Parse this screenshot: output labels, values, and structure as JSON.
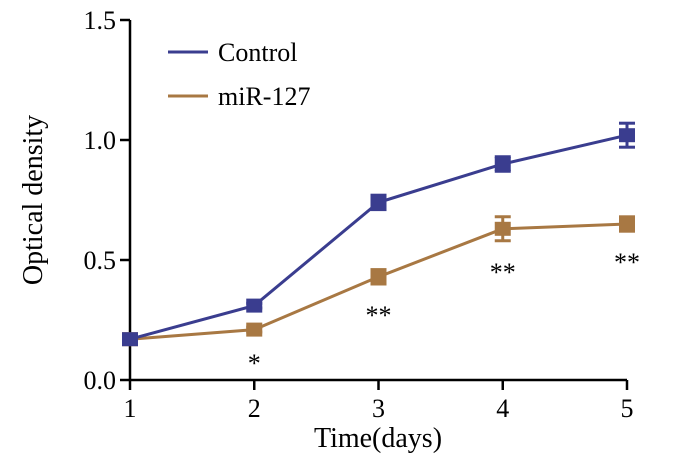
{
  "chart_data": {
    "type": "line",
    "title": "",
    "xlabel": "Time(days)",
    "ylabel": "Optical density",
    "x": [
      1,
      2,
      3,
      4,
      5
    ],
    "x_tick_labels": [
      "1",
      "2",
      "3",
      "4",
      "5"
    ],
    "xlim": [
      1,
      5
    ],
    "ylim": [
      0,
      1.5
    ],
    "y_ticks": [
      0.0,
      0.5,
      1.0,
      1.5
    ],
    "y_tick_labels": [
      "0.0",
      "0.5",
      "1.0",
      "1.5"
    ],
    "grid": false,
    "legend_position": "top-left",
    "series": [
      {
        "name": "Control",
        "color": "#3a3d8f",
        "marker": "square",
        "values": [
          0.17,
          0.31,
          0.74,
          0.9,
          1.02
        ],
        "errors": [
          0.01,
          0.01,
          0.03,
          0.03,
          0.05
        ]
      },
      {
        "name": "miR-127",
        "color": "#a87843",
        "marker": "square",
        "values": [
          0.17,
          0.21,
          0.43,
          0.63,
          0.65
        ],
        "errors": [
          0.01,
          0.01,
          0.03,
          0.05,
          0.03
        ]
      }
    ],
    "annotations": [
      {
        "x": 2,
        "text": "*"
      },
      {
        "x": 3,
        "text": "**"
      },
      {
        "x": 4,
        "text": "**"
      },
      {
        "x": 5,
        "text": "**"
      }
    ]
  }
}
